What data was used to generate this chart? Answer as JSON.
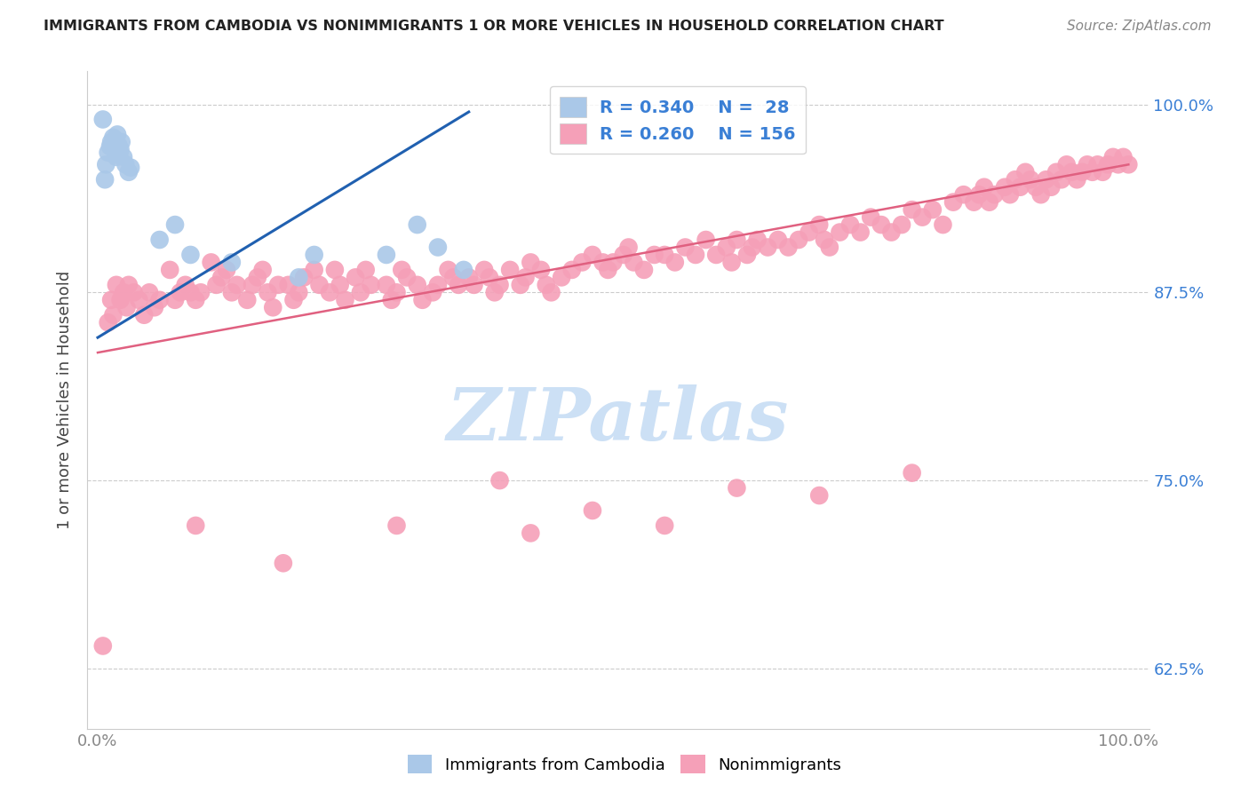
{
  "title": "IMMIGRANTS FROM CAMBODIA VS NONIMMIGRANTS 1 OR MORE VEHICLES IN HOUSEHOLD CORRELATION CHART",
  "source": "Source: ZipAtlas.com",
  "ylabel": "1 or more Vehicles in Household",
  "xlim": [
    -0.01,
    1.02
  ],
  "ylim": [
    0.585,
    1.022
  ],
  "ytick_positions": [
    0.625,
    0.75,
    0.875,
    1.0
  ],
  "ytick_labels": [
    "62.5%",
    "75.0%",
    "87.5%",
    "100.0%"
  ],
  "xtick_positions": [
    0.0,
    0.25,
    0.5,
    0.75,
    1.0
  ],
  "xtick_labels_bottom": [
    "0.0%",
    "",
    "",
    "",
    "100.0%"
  ],
  "blue_color": "#aac8e8",
  "blue_line_color": "#2060b0",
  "pink_color": "#f5a0b8",
  "pink_line_color": "#e06080",
  "legend_text_color": "#3a7fd5",
  "title_color": "#222222",
  "source_color": "#888888",
  "watermark_text": "ZIPatlas",
  "watermark_color": "#cce0f5",
  "right_tick_color": "#3a7fd5",
  "grid_color": "#cccccc",
  "blue_line_x0": 0.0,
  "blue_line_y0": 0.845,
  "blue_line_x1": 0.36,
  "blue_line_y1": 0.995,
  "pink_line_x0": 0.0,
  "pink_line_y0": 0.835,
  "pink_line_x1": 1.0,
  "pink_line_y1": 0.96,
  "legend_R1": "R = 0.340",
  "legend_N1": "N =  28",
  "legend_R2": "R = 0.260",
  "legend_N2": "N = 156",
  "blue_x": [
    0.005,
    0.007,
    0.008,
    0.01,
    0.012,
    0.013,
    0.015,
    0.017,
    0.018,
    0.019,
    0.02,
    0.021,
    0.022,
    0.023,
    0.025,
    0.027,
    0.03,
    0.032,
    0.06,
    0.075,
    0.09,
    0.13,
    0.195,
    0.21,
    0.28,
    0.31,
    0.33,
    0.355
  ],
  "blue_y": [
    0.99,
    0.95,
    0.96,
    0.968,
    0.972,
    0.975,
    0.978,
    0.97,
    0.965,
    0.98,
    0.973,
    0.966,
    0.97,
    0.975,
    0.965,
    0.96,
    0.955,
    0.958,
    0.91,
    0.92,
    0.9,
    0.895,
    0.885,
    0.9,
    0.9,
    0.92,
    0.905,
    0.89
  ],
  "pink_x": [
    0.005,
    0.01,
    0.013,
    0.015,
    0.018,
    0.022,
    0.025,
    0.028,
    0.03,
    0.035,
    0.04,
    0.045,
    0.05,
    0.055,
    0.06,
    0.07,
    0.075,
    0.08,
    0.085,
    0.09,
    0.095,
    0.1,
    0.11,
    0.115,
    0.12,
    0.125,
    0.13,
    0.135,
    0.145,
    0.15,
    0.155,
    0.16,
    0.165,
    0.17,
    0.175,
    0.185,
    0.19,
    0.195,
    0.2,
    0.21,
    0.215,
    0.225,
    0.23,
    0.235,
    0.24,
    0.25,
    0.255,
    0.26,
    0.265,
    0.28,
    0.285,
    0.29,
    0.295,
    0.3,
    0.31,
    0.315,
    0.325,
    0.33,
    0.34,
    0.345,
    0.35,
    0.36,
    0.365,
    0.375,
    0.38,
    0.385,
    0.39,
    0.4,
    0.41,
    0.415,
    0.42,
    0.43,
    0.435,
    0.44,
    0.45,
    0.46,
    0.47,
    0.48,
    0.49,
    0.495,
    0.5,
    0.51,
    0.515,
    0.52,
    0.53,
    0.54,
    0.55,
    0.56,
    0.57,
    0.58,
    0.59,
    0.6,
    0.61,
    0.615,
    0.62,
    0.63,
    0.635,
    0.64,
    0.65,
    0.66,
    0.67,
    0.68,
    0.69,
    0.7,
    0.705,
    0.71,
    0.72,
    0.73,
    0.74,
    0.75,
    0.76,
    0.77,
    0.78,
    0.79,
    0.8,
    0.81,
    0.82,
    0.83,
    0.84,
    0.85,
    0.855,
    0.86,
    0.865,
    0.87,
    0.88,
    0.885,
    0.89,
    0.895,
    0.9,
    0.905,
    0.91,
    0.915,
    0.92,
    0.925,
    0.93,
    0.935,
    0.94,
    0.945,
    0.95,
    0.955,
    0.96,
    0.965,
    0.97,
    0.975,
    0.98,
    0.985,
    0.99,
    0.995,
    1.0,
    0.095,
    0.18,
    0.29,
    0.39,
    0.42,
    0.48,
    0.55,
    0.62,
    0.7,
    0.79
  ],
  "pink_y": [
    0.64,
    0.855,
    0.87,
    0.86,
    0.88,
    0.87,
    0.875,
    0.865,
    0.88,
    0.875,
    0.87,
    0.86,
    0.875,
    0.865,
    0.87,
    0.89,
    0.87,
    0.875,
    0.88,
    0.875,
    0.87,
    0.875,
    0.895,
    0.88,
    0.885,
    0.89,
    0.875,
    0.88,
    0.87,
    0.88,
    0.885,
    0.89,
    0.875,
    0.865,
    0.88,
    0.88,
    0.87,
    0.875,
    0.885,
    0.89,
    0.88,
    0.875,
    0.89,
    0.88,
    0.87,
    0.885,
    0.875,
    0.89,
    0.88,
    0.88,
    0.87,
    0.875,
    0.89,
    0.885,
    0.88,
    0.87,
    0.875,
    0.88,
    0.89,
    0.885,
    0.88,
    0.885,
    0.88,
    0.89,
    0.885,
    0.875,
    0.88,
    0.89,
    0.88,
    0.885,
    0.895,
    0.89,
    0.88,
    0.875,
    0.885,
    0.89,
    0.895,
    0.9,
    0.895,
    0.89,
    0.895,
    0.9,
    0.905,
    0.895,
    0.89,
    0.9,
    0.9,
    0.895,
    0.905,
    0.9,
    0.91,
    0.9,
    0.905,
    0.895,
    0.91,
    0.9,
    0.905,
    0.91,
    0.905,
    0.91,
    0.905,
    0.91,
    0.915,
    0.92,
    0.91,
    0.905,
    0.915,
    0.92,
    0.915,
    0.925,
    0.92,
    0.915,
    0.92,
    0.93,
    0.925,
    0.93,
    0.92,
    0.935,
    0.94,
    0.935,
    0.94,
    0.945,
    0.935,
    0.94,
    0.945,
    0.94,
    0.95,
    0.945,
    0.955,
    0.95,
    0.945,
    0.94,
    0.95,
    0.945,
    0.955,
    0.95,
    0.96,
    0.955,
    0.95,
    0.955,
    0.96,
    0.955,
    0.96,
    0.955,
    0.96,
    0.965,
    0.96,
    0.965,
    0.96,
    0.72,
    0.695,
    0.72,
    0.75,
    0.715,
    0.73,
    0.72,
    0.745,
    0.74,
    0.755
  ]
}
